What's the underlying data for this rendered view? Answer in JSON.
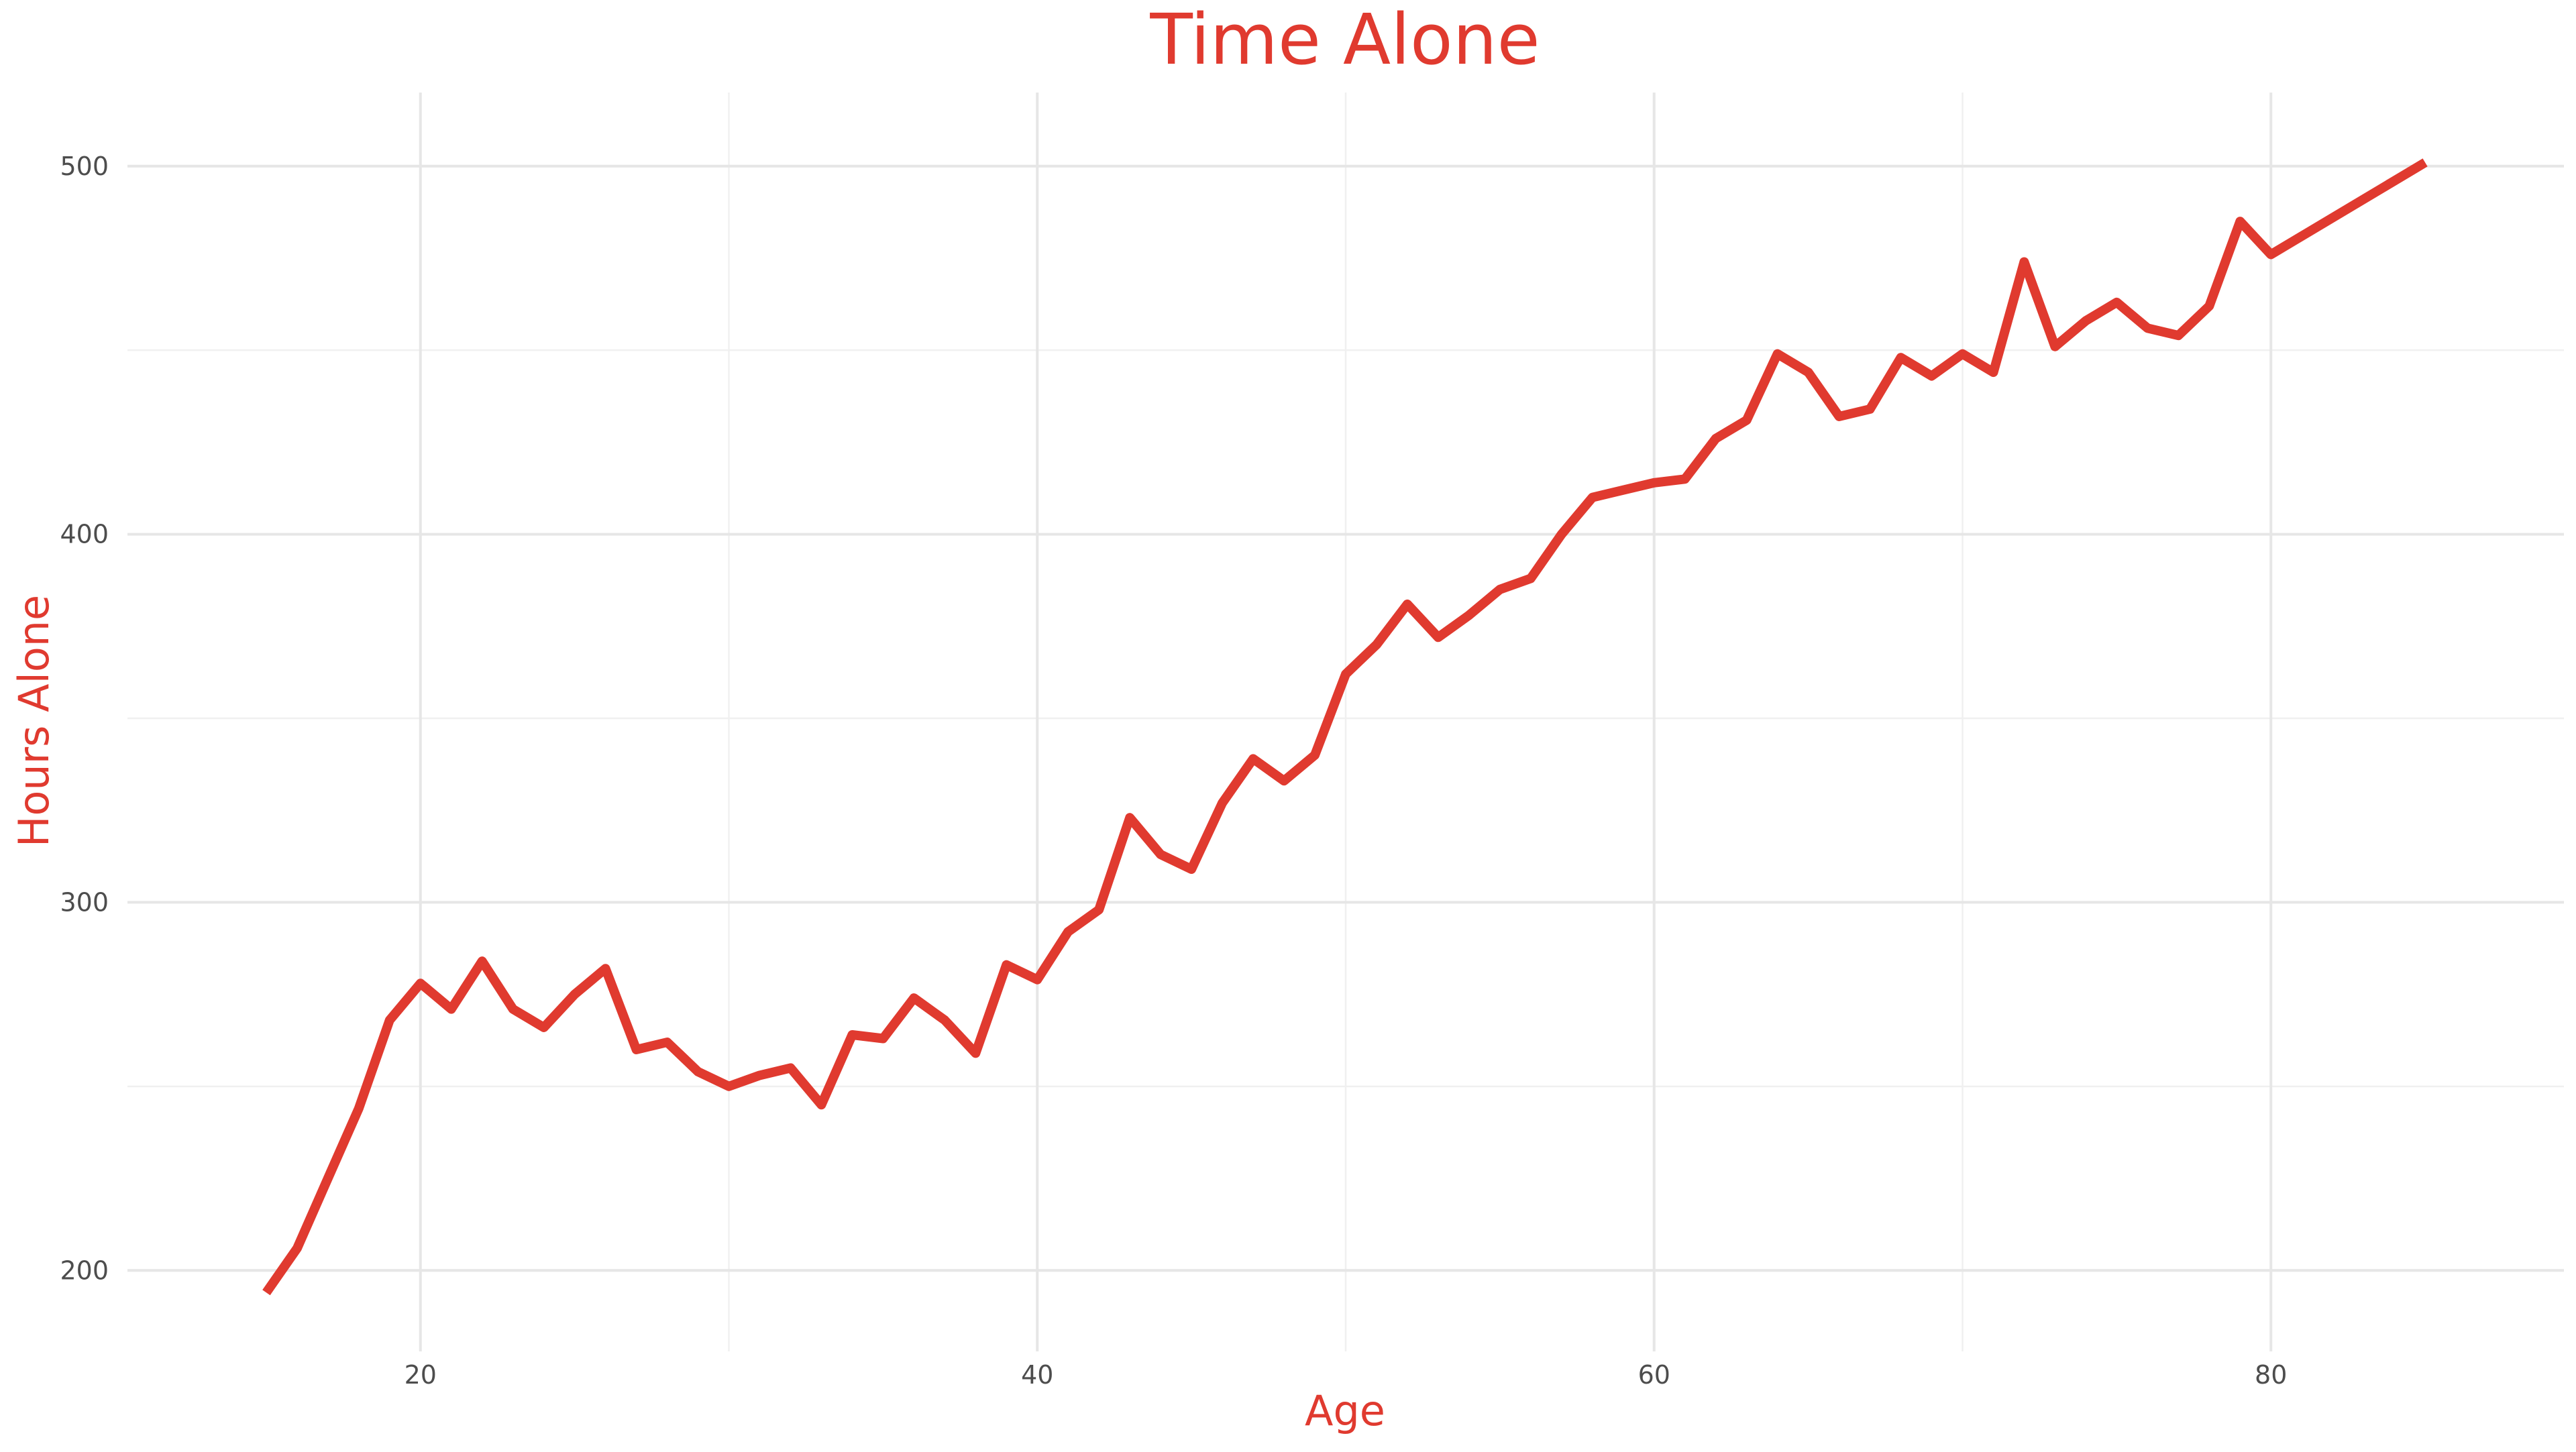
{
  "chart_data": {
    "type": "line",
    "title": "Time Alone",
    "xlabel": "Age",
    "ylabel": "Hours Alone",
    "xlim": [
      10.5,
      89.5
    ],
    "ylim": [
      178,
      520
    ],
    "x_major_ticks": [
      20,
      40,
      60,
      80
    ],
    "x_minor_ticks": [
      30,
      50,
      70
    ],
    "y_major_ticks": [
      200,
      300,
      400,
      500
    ],
    "y_minor_ticks": [
      250,
      350,
      450
    ],
    "tick_labels": {
      "x": [
        "20",
        "40",
        "60",
        "80"
      ],
      "y": [
        "200",
        "300",
        "400",
        "500"
      ]
    },
    "grid": true,
    "legend": "none",
    "series": [
      {
        "color": "#e03a2f",
        "x": [
          15,
          16,
          17,
          18,
          19,
          20,
          21,
          22,
          23,
          24,
          25,
          26,
          27,
          28,
          29,
          30,
          31,
          32,
          33,
          34,
          35,
          36,
          37,
          38,
          39,
          40,
          41,
          42,
          43,
          44,
          45,
          46,
          47,
          48,
          49,
          50,
          51,
          52,
          53,
          54,
          55,
          56,
          57,
          58,
          59,
          60,
          61,
          62,
          63,
          64,
          65,
          66,
          67,
          68,
          69,
          70,
          71,
          72,
          73,
          74,
          75,
          76,
          77,
          78,
          79,
          80,
          85
        ],
        "y": [
          194,
          206,
          225,
          244,
          268,
          278,
          271,
          284,
          271,
          266,
          275,
          282,
          260,
          262,
          254,
          250,
          253,
          255,
          245,
          264,
          263,
          274,
          268,
          259,
          283,
          279,
          292,
          298,
          323,
          313,
          309,
          327,
          339,
          333,
          340,
          362,
          370,
          381,
          372,
          378,
          385,
          388,
          400,
          410,
          412,
          414,
          415,
          426,
          431,
          449,
          444,
          432,
          434,
          448,
          443,
          449,
          444,
          474,
          451,
          458,
          463,
          456,
          454,
          462,
          485,
          476,
          501
        ]
      }
    ]
  }
}
